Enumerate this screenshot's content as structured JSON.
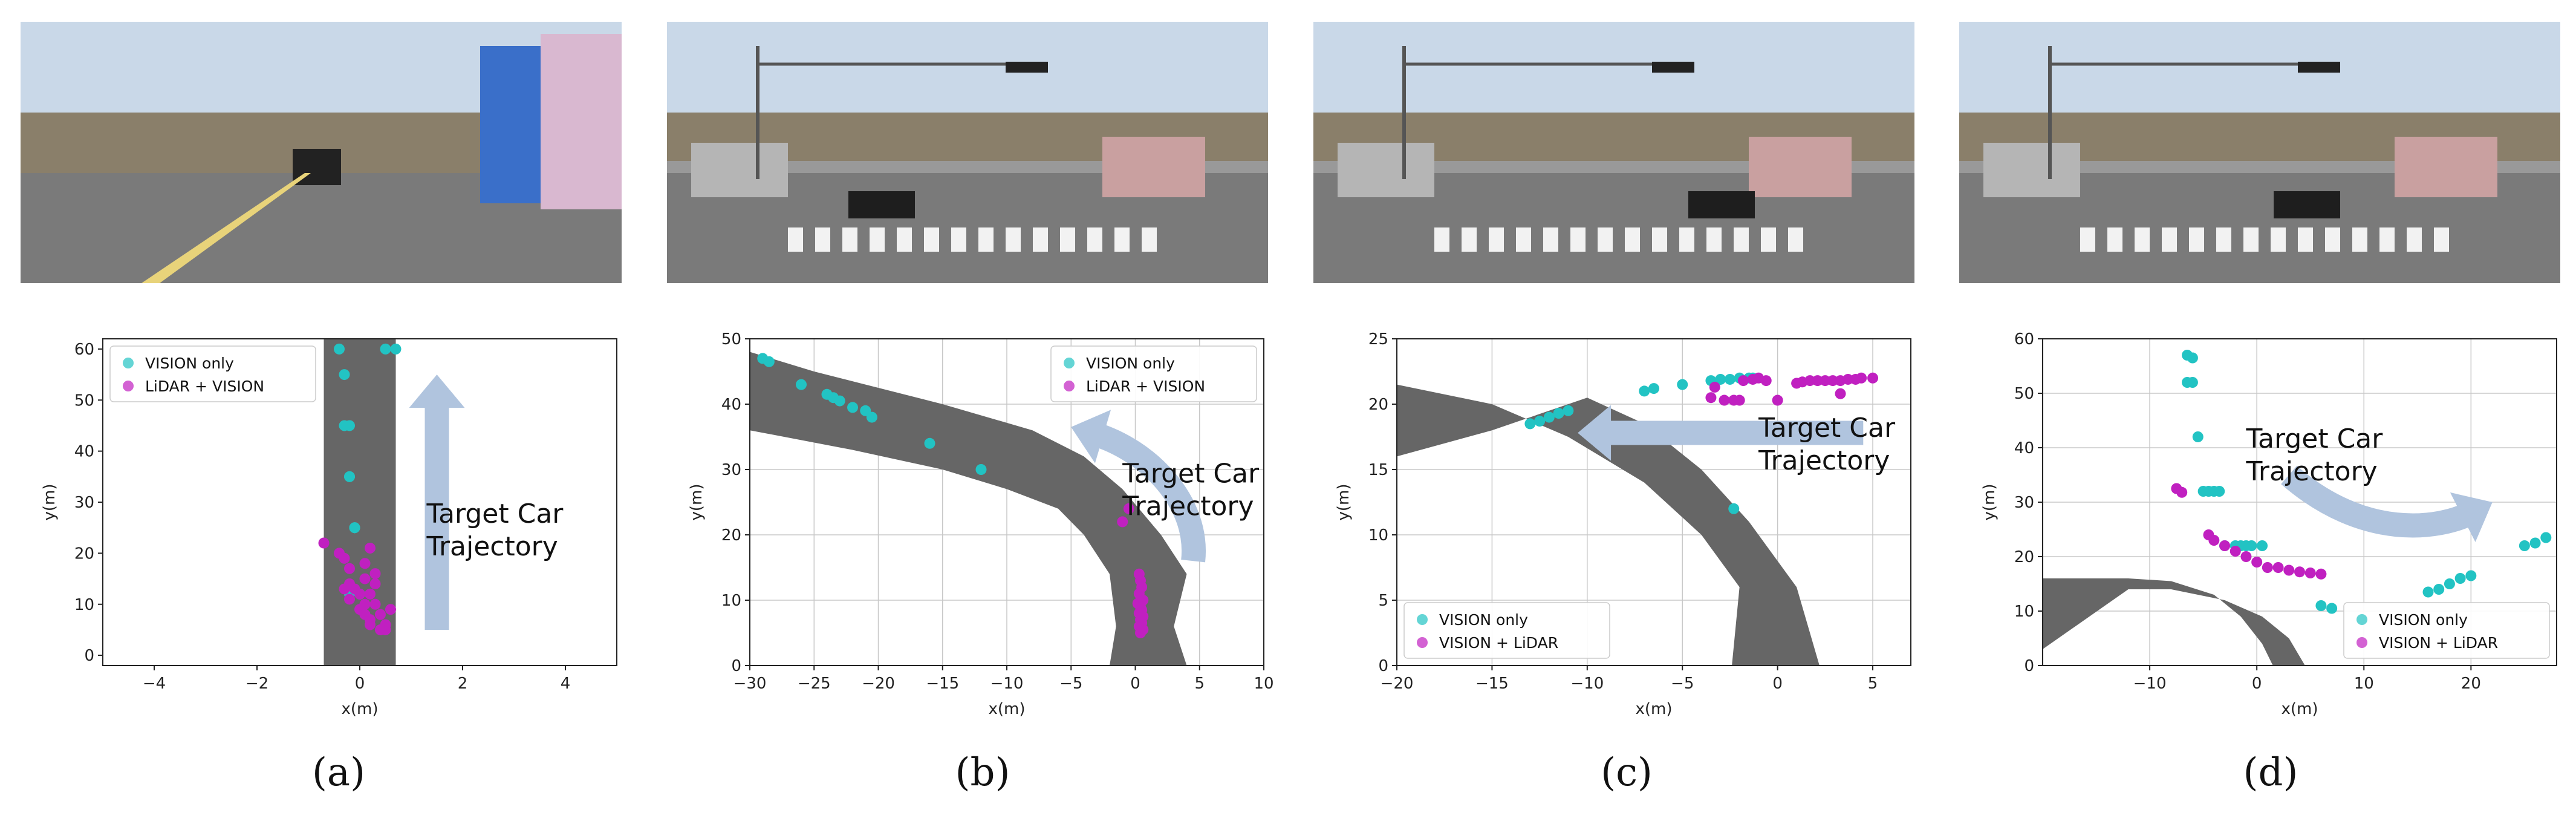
{
  "colors": {
    "vision": "#22c3c3",
    "lidar": "#c020c0",
    "road": "#666666",
    "arrow": "#b0c4de",
    "grid": "#c8c8c8",
    "sky": "#c9d8e8",
    "asphalt": "#7a7a7a"
  },
  "photos": [
    {
      "label": "road-scene-straight"
    },
    {
      "label": "road-scene-intersection-left"
    },
    {
      "label": "road-scene-crosswalk-crossing"
    },
    {
      "label": "road-scene-crosswalk-right"
    }
  ],
  "captions": [
    "(a)",
    "(b)",
    "(c)",
    "(d)"
  ],
  "chart_data": [
    {
      "type": "scatter",
      "xlabel": "x(m)",
      "ylabel": "y(m)",
      "xlim": [
        -5,
        5
      ],
      "ylim": [
        -2,
        62
      ],
      "xticks": [
        -4,
        -2,
        0,
        2,
        4
      ],
      "yticks": [
        0,
        10,
        20,
        30,
        40,
        50,
        60
      ],
      "grid": false,
      "legend_position": "top-left",
      "road": [
        [
          -0.7,
          -2
        ],
        [
          0.7,
          -2
        ],
        [
          0.7,
          62
        ],
        [
          -0.7,
          62
        ]
      ],
      "arrow": [
        [
          1.5,
          5
        ],
        [
          1.5,
          55
        ]
      ],
      "annotation": [
        "Target Car",
        "Trajectory"
      ],
      "annotation_at": [
        1.3,
        26
      ],
      "series": [
        {
          "name": "VISION only",
          "color_key": "vision",
          "x": [
            -0.4,
            0.5,
            0.7,
            -0.3,
            -0.2,
            -0.3,
            -0.2,
            -0.2,
            -0.1,
            -0.1,
            -0.1,
            -0.2,
            0.0
          ],
          "y": [
            60,
            60,
            60,
            55,
            45,
            45,
            35,
            35,
            25,
            25,
            25,
            12,
            12
          ]
        },
        {
          "name": "LiDAR + VISION",
          "color_key": "lidar",
          "x": [
            -0.7,
            -0.4,
            -0.3,
            -0.2,
            0.2,
            0.1,
            0.3,
            -0.2,
            -0.1,
            0.0,
            0.1,
            -0.3,
            -0.2,
            0.2,
            0.3,
            0.0,
            0.1,
            0.2,
            0.4,
            0.5,
            0.2,
            0.4,
            0.5,
            0.1,
            0.3,
            0.6
          ],
          "y": [
            22,
            20,
            19,
            17,
            21,
            18,
            16,
            14,
            13,
            12,
            15,
            13,
            11,
            12,
            10,
            9,
            8,
            7,
            8,
            6,
            6,
            5,
            5,
            10,
            14,
            9
          ]
        }
      ]
    },
    {
      "type": "scatter",
      "xlabel": "x(m)",
      "ylabel": "y(m)",
      "xlim": [
        -30,
        10
      ],
      "ylim": [
        0,
        50
      ],
      "xticks": [
        -30,
        -25,
        -20,
        -15,
        -10,
        -5,
        0,
        5,
        10
      ],
      "yticks": [
        0,
        10,
        20,
        30,
        40,
        50
      ],
      "grid": true,
      "legend_position": "top-right",
      "road": [
        [
          -30,
          48
        ],
        [
          -25,
          45
        ],
        [
          -15,
          40
        ],
        [
          -8,
          36
        ],
        [
          -4,
          32
        ],
        [
          -1,
          27
        ],
        [
          2,
          20
        ],
        [
          4,
          14
        ],
        [
          3,
          6
        ],
        [
          4,
          0
        ],
        [
          -2,
          0
        ],
        [
          -1.5,
          6
        ],
        [
          -2,
          14
        ],
        [
          -4,
          20
        ],
        [
          -6,
          24
        ],
        [
          -10,
          27
        ],
        [
          -15,
          30
        ],
        [
          -22,
          33
        ],
        [
          -30,
          36
        ]
      ],
      "arrow": [
        [
          4.5,
          16
        ],
        [
          5,
          25
        ],
        [
          1,
          33
        ],
        [
          -5,
          36.5
        ]
      ],
      "annotation": [
        "Target Car",
        "Trajectory"
      ],
      "annotation_at": [
        -1,
        28
      ],
      "series": [
        {
          "name": "VISION only",
          "color_key": "vision",
          "x": [
            -29,
            -28.5,
            -26,
            -24,
            -23.5,
            -23,
            -22,
            -21,
            -20.5,
            -16,
            -12
          ],
          "y": [
            47,
            46.5,
            43,
            41.5,
            41,
            40.5,
            39.5,
            39,
            38,
            34,
            30
          ]
        },
        {
          "name": "LiDAR + VISION",
          "color_key": "lidar",
          "x": [
            -1,
            -0.5,
            0.3,
            0.4,
            0.5,
            0.3,
            0.6,
            0.2,
            0.4,
            0.5,
            0.3,
            0.6,
            0.4,
            0.5,
            0.3,
            0.6,
            0.4
          ],
          "y": [
            22,
            24,
            14,
            13,
            12,
            11,
            10,
            9.5,
            9,
            8.5,
            8,
            7.5,
            7,
            6.5,
            6,
            5.5,
            5
          ]
        }
      ]
    },
    {
      "type": "scatter",
      "xlabel": "x(m)",
      "ylabel": "y(m)",
      "xlim": [
        -20,
        7
      ],
      "ylim": [
        0,
        25
      ],
      "xticks": [
        -20,
        -15,
        -10,
        -5,
        0,
        5
      ],
      "yticks": [
        0,
        5,
        10,
        15,
        20,
        25
      ],
      "grid": true,
      "legend_position": "bottom-left",
      "road": [
        [
          -20,
          21.5
        ],
        [
          -15,
          20
        ],
        [
          -11,
          17.5
        ],
        [
          -7,
          14
        ],
        [
          -4,
          10
        ],
        [
          -2,
          6
        ],
        [
          -2.4,
          0
        ],
        [
          2.2,
          0
        ],
        [
          1,
          6
        ],
        [
          -1.5,
          11
        ],
        [
          -4,
          15
        ],
        [
          -7,
          18.5
        ],
        [
          -10,
          20.5
        ],
        [
          -15,
          18
        ],
        [
          -20,
          16
        ]
      ],
      "arrow": [
        [
          4.5,
          17.8
        ],
        [
          -10.5,
          17.8
        ]
      ],
      "annotation": [
        "Target Car",
        "Trajectory"
      ],
      "annotation_at": [
        -1,
        17.5
      ],
      "series": [
        {
          "name": "VISION only",
          "color_key": "vision",
          "x": [
            -13,
            -12.5,
            -12,
            -11.5,
            -11,
            -7,
            -6.5,
            -5,
            -3.5,
            -3,
            -2.5,
            -2,
            -1.5,
            -1.3,
            -2.3
          ],
          "y": [
            18.5,
            18.7,
            19,
            19.3,
            19.5,
            21,
            21.2,
            21.5,
            21.8,
            21.9,
            21.9,
            22,
            22,
            22,
            12
          ]
        },
        {
          "name": "VISION + LiDAR",
          "color_key": "lidar",
          "x": [
            -3.5,
            -3.3,
            -2,
            -1.8,
            -1.3,
            -1,
            -0.6,
            0,
            1,
            1.3,
            1.7,
            2.1,
            2.5,
            2.9,
            3.3,
            3.7,
            4.1,
            4.4,
            5,
            3.3,
            -2.8,
            -2.3
          ],
          "y": [
            20.5,
            21.3,
            20.3,
            21.8,
            21.9,
            22,
            21.8,
            20.3,
            21.6,
            21.7,
            21.8,
            21.8,
            21.8,
            21.8,
            21.8,
            21.9,
            21.9,
            22,
            22,
            20.8,
            20.3,
            20.3
          ]
        }
      ]
    },
    {
      "type": "scatter",
      "xlabel": "x(m)",
      "ylabel": "y(m)",
      "xlim": [
        -20,
        28
      ],
      "ylim": [
        0,
        60
      ],
      "xticks": [
        -10,
        0,
        10,
        20
      ],
      "yticks": [
        0,
        10,
        20,
        30,
        40,
        50,
        60
      ],
      "grid": true,
      "legend_position": "bottom-right",
      "road": [
        [
          -20,
          16
        ],
        [
          -12,
          16
        ],
        [
          -8,
          15.5
        ],
        [
          -4,
          13
        ],
        [
          -1.5,
          9
        ],
        [
          0.5,
          4
        ],
        [
          1.5,
          0
        ],
        [
          4.5,
          0
        ],
        [
          3,
          5
        ],
        [
          0.5,
          9
        ],
        [
          -3,
          12
        ],
        [
          -8,
          14
        ],
        [
          -12,
          14
        ],
        [
          -20,
          3
        ]
      ],
      "arrow": [
        [
          3,
          35
        ],
        [
          10,
          23
        ],
        [
          17,
          25
        ],
        [
          22,
          30
        ]
      ],
      "annotation": [
        "Target Car",
        "Trajectory"
      ],
      "annotation_at": [
        -1,
        40
      ],
      "series": [
        {
          "name": "VISION only",
          "color_key": "vision",
          "x": [
            -6.5,
            -6,
            -6.5,
            -6,
            -5.5,
            -5,
            -4.5,
            -4,
            -3.5,
            -3,
            -2,
            -1.5,
            -1,
            -0.5,
            0.5,
            6,
            7,
            16,
            17,
            18,
            19,
            20,
            25,
            26,
            27
          ],
          "y": [
            57,
            56.5,
            52,
            52,
            42,
            32,
            32,
            32,
            32,
            22,
            22,
            22,
            22,
            22,
            22,
            11,
            10.5,
            13.5,
            14,
            15,
            16,
            16.5,
            22,
            22.5,
            23.5
          ]
        },
        {
          "name": "VISION + LiDAR",
          "color_key": "lidar",
          "x": [
            -7.5,
            -7,
            -4.5,
            -4,
            -3,
            -2,
            -1,
            0,
            1,
            2,
            3,
            4,
            5,
            6
          ],
          "y": [
            32.5,
            31.8,
            24,
            23,
            22,
            21,
            20,
            19,
            18,
            18,
            17.5,
            17.2,
            17,
            16.8
          ]
        }
      ]
    }
  ]
}
